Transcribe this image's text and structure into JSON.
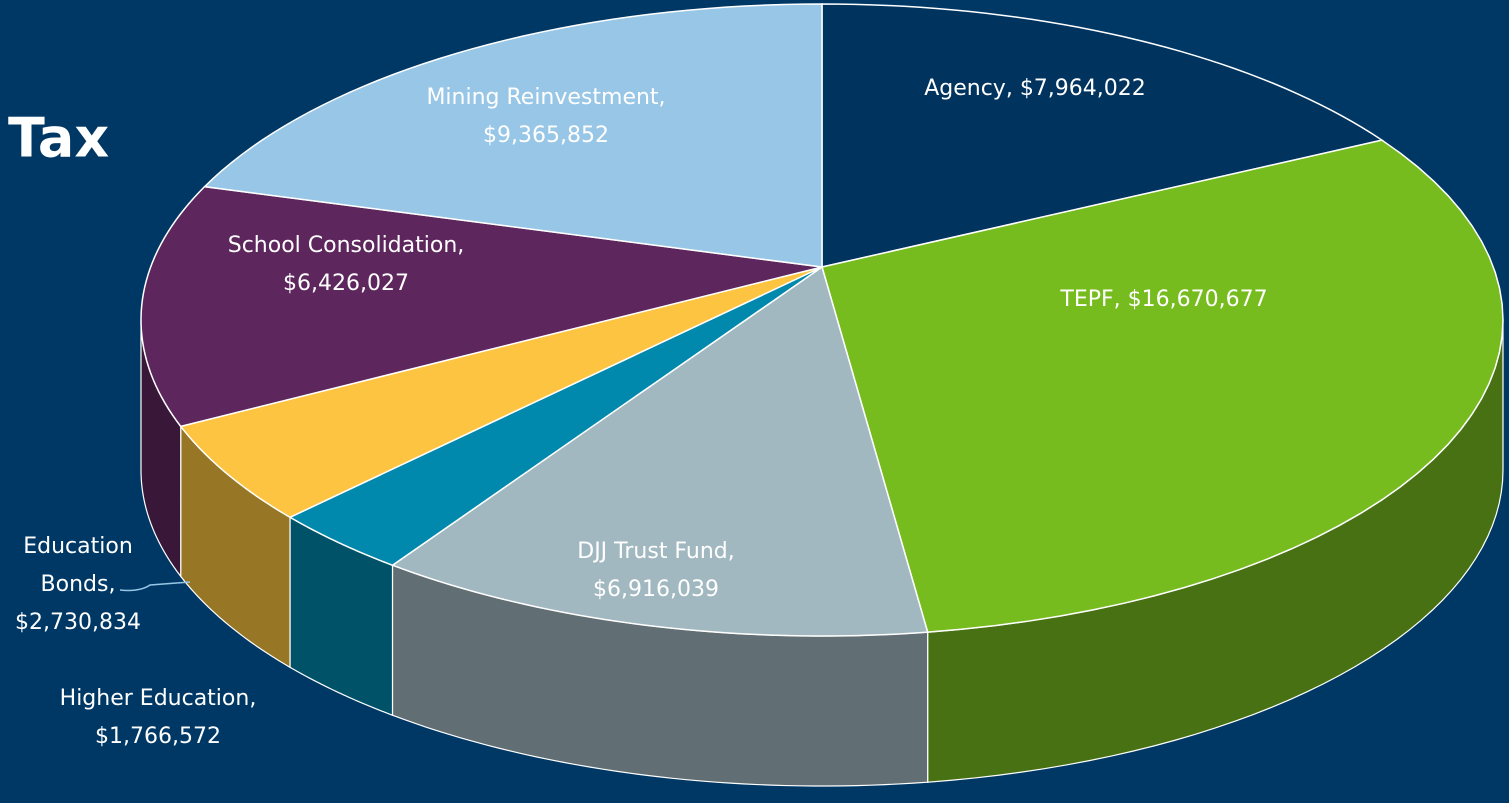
{
  "chart_data": {
    "type": "pie",
    "title": "Tax",
    "labels": [
      [
        "Agency, $7,964,022"
      ],
      [
        "TEPF, $16,670,677"
      ],
      [
        "DJJ Trust Fund,",
        "$6,916,039"
      ],
      [
        "Higher Education,",
        "$1,766,572"
      ],
      [
        "Education",
        "Bonds,",
        "$2,730,834"
      ],
      [
        "School Consolidation,",
        "$6,426,027"
      ],
      [
        "Mining Reinvestment,",
        "$9,365,852"
      ]
    ],
    "values": [
      7964022,
      16670677,
      6916039,
      1766572,
      2730834,
      6426027,
      9365852
    ],
    "colors": [
      "#00335e",
      "#77bc1f",
      "#a2b8c0",
      "#0088ad",
      "#fcc440",
      "#5d275d",
      "#98c6e6"
    ]
  }
}
